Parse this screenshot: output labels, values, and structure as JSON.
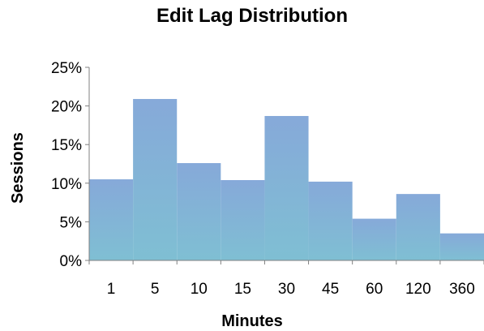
{
  "chart_data": {
    "type": "bar",
    "title": "Edit Lag Distribution",
    "xlabel": "Minutes",
    "ylabel": "Sessions",
    "categories": [
      "1",
      "5",
      "10",
      "15",
      "30",
      "45",
      "60",
      "120",
      "360"
    ],
    "values": [
      10.5,
      20.9,
      12.6,
      10.4,
      18.7,
      10.2,
      5.4,
      8.6,
      3.5
    ],
    "ylim": [
      0,
      25
    ],
    "yticks": [
      0,
      5,
      10,
      15,
      20,
      25
    ],
    "ytick_labels": [
      "0%",
      "5%",
      "10%",
      "15%",
      "20%",
      "25%"
    ],
    "grid": false,
    "legend": "none",
    "bar_color_top": "#86a9d9",
    "bar_color_bottom": "#7fbfd3"
  }
}
